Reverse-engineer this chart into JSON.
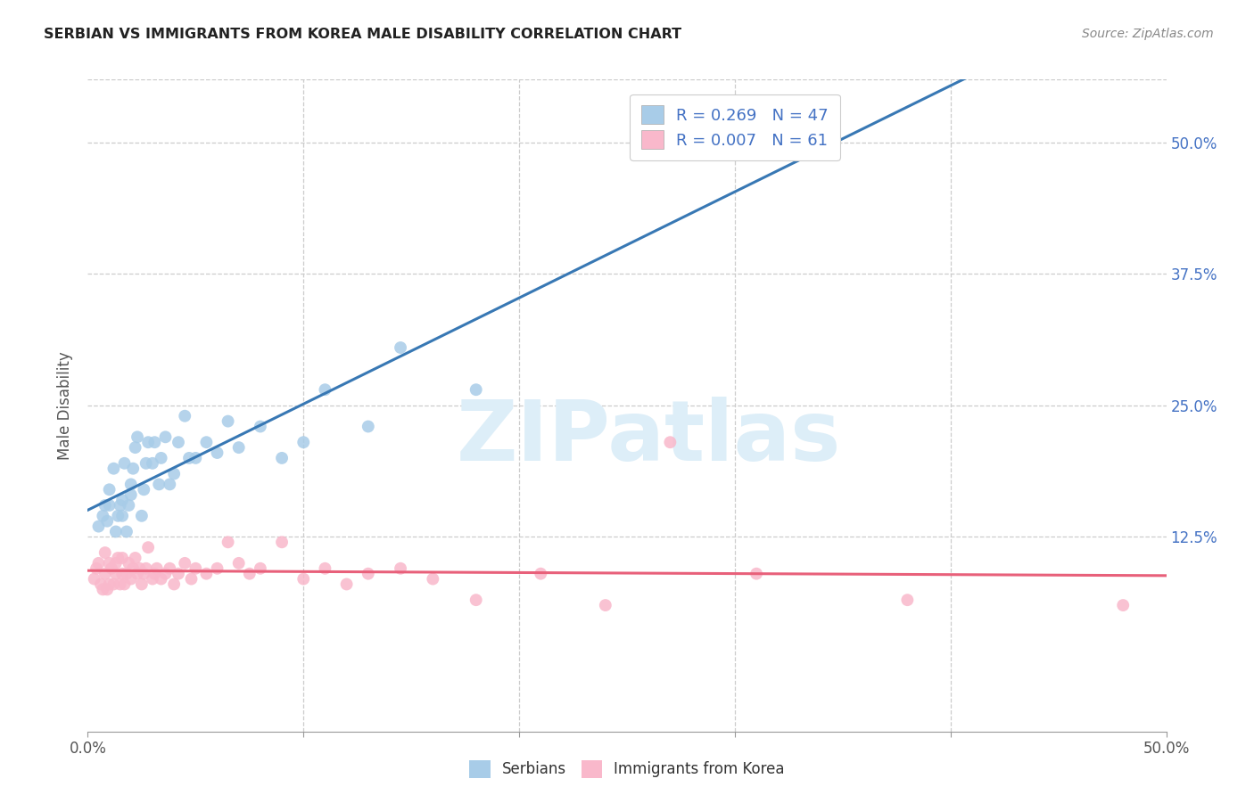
{
  "title": "SERBIAN VS IMMIGRANTS FROM KOREA MALE DISABILITY CORRELATION CHART",
  "source": "Source: ZipAtlas.com",
  "ylabel": "Male Disability",
  "xlim": [
    0.0,
    0.5
  ],
  "ylim": [
    -0.06,
    0.56
  ],
  "xtick_vals": [
    0.0,
    0.1,
    0.2,
    0.3,
    0.4,
    0.5
  ],
  "xtick_labels": [
    "0.0%",
    "",
    "",
    "",
    "",
    "50.0%"
  ],
  "ytick_vals": [
    0.125,
    0.25,
    0.375,
    0.5
  ],
  "ytick_labels_right": [
    "12.5%",
    "25.0%",
    "37.5%",
    "50.0%"
  ],
  "legend_serbian_R": "0.269",
  "legend_serbian_N": "47",
  "legend_korea_R": "0.007",
  "legend_korea_N": "61",
  "blue_color": "#a8cce8",
  "pink_color": "#f9b8cb",
  "blue_line_color": "#3878b4",
  "pink_line_color": "#e8607a",
  "serbian_x": [
    0.005,
    0.007,
    0.008,
    0.009,
    0.01,
    0.01,
    0.012,
    0.013,
    0.014,
    0.015,
    0.016,
    0.016,
    0.017,
    0.018,
    0.019,
    0.02,
    0.02,
    0.021,
    0.022,
    0.023,
    0.025,
    0.026,
    0.027,
    0.028,
    0.03,
    0.031,
    0.033,
    0.034,
    0.036,
    0.038,
    0.04,
    0.042,
    0.045,
    0.047,
    0.05,
    0.055,
    0.06,
    0.065,
    0.07,
    0.08,
    0.09,
    0.1,
    0.11,
    0.13,
    0.145,
    0.18,
    0.27
  ],
  "serbian_y": [
    0.135,
    0.145,
    0.155,
    0.14,
    0.155,
    0.17,
    0.19,
    0.13,
    0.145,
    0.155,
    0.145,
    0.16,
    0.195,
    0.13,
    0.155,
    0.165,
    0.175,
    0.19,
    0.21,
    0.22,
    0.145,
    0.17,
    0.195,
    0.215,
    0.195,
    0.215,
    0.175,
    0.2,
    0.22,
    0.175,
    0.185,
    0.215,
    0.24,
    0.2,
    0.2,
    0.215,
    0.205,
    0.235,
    0.21,
    0.23,
    0.2,
    0.215,
    0.265,
    0.23,
    0.305,
    0.265,
    0.49
  ],
  "korea_x": [
    0.003,
    0.004,
    0.005,
    0.006,
    0.007,
    0.008,
    0.008,
    0.009,
    0.01,
    0.01,
    0.011,
    0.012,
    0.013,
    0.013,
    0.014,
    0.015,
    0.016,
    0.016,
    0.017,
    0.018,
    0.019,
    0.02,
    0.021,
    0.022,
    0.023,
    0.024,
    0.025,
    0.026,
    0.027,
    0.028,
    0.03,
    0.031,
    0.032,
    0.034,
    0.036,
    0.038,
    0.04,
    0.042,
    0.045,
    0.048,
    0.05,
    0.055,
    0.06,
    0.065,
    0.07,
    0.075,
    0.08,
    0.09,
    0.1,
    0.11,
    0.12,
    0.13,
    0.145,
    0.16,
    0.18,
    0.21,
    0.24,
    0.27,
    0.31,
    0.38,
    0.48
  ],
  "korea_y": [
    0.085,
    0.095,
    0.1,
    0.08,
    0.075,
    0.09,
    0.11,
    0.075,
    0.08,
    0.1,
    0.095,
    0.08,
    0.09,
    0.1,
    0.105,
    0.08,
    0.09,
    0.105,
    0.08,
    0.09,
    0.1,
    0.085,
    0.095,
    0.105,
    0.09,
    0.095,
    0.08,
    0.09,
    0.095,
    0.115,
    0.085,
    0.09,
    0.095,
    0.085,
    0.09,
    0.095,
    0.08,
    0.09,
    0.1,
    0.085,
    0.095,
    0.09,
    0.095,
    0.12,
    0.1,
    0.09,
    0.095,
    0.12,
    0.085,
    0.095,
    0.08,
    0.09,
    0.095,
    0.085,
    0.065,
    0.09,
    0.06,
    0.215,
    0.09,
    0.065,
    0.06
  ],
  "watermark_text": "ZIPatlas",
  "watermark_color": "#ddeef8",
  "background_color": "#ffffff",
  "grid_color": "#cccccc",
  "grid_style": "--"
}
